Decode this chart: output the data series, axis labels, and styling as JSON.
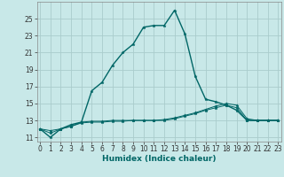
{
  "xlabel": "Humidex (Indice chaleur)",
  "bg_color": "#c8e8e8",
  "grid_color": "#aacccc",
  "line_color": "#006666",
  "x_main": [
    0,
    1,
    2,
    3,
    4,
    5,
    6,
    7,
    8,
    9,
    10,
    11,
    12,
    13,
    14,
    15,
    16,
    17,
    18,
    19,
    20,
    21,
    22,
    23
  ],
  "y_main": [
    12,
    11,
    12,
    12.5,
    12.8,
    16.5,
    17.5,
    19.5,
    21,
    22,
    24,
    24.2,
    24.2,
    26,
    23.2,
    18.2,
    15.5,
    15.2,
    14.8,
    14.2,
    13,
    13,
    13,
    13
  ],
  "x_line1": [
    0,
    1,
    2,
    3,
    4,
    5,
    6,
    7,
    8,
    9,
    10,
    11,
    12,
    13,
    14,
    15,
    16,
    17,
    18,
    19,
    20,
    21,
    22,
    23
  ],
  "y_line1": [
    12,
    11.8,
    12,
    12.3,
    12.8,
    12.9,
    12.9,
    13.0,
    13.0,
    13.0,
    13.0,
    13.0,
    13.0,
    13.2,
    13.5,
    13.8,
    14.2,
    14.5,
    14.8,
    14.5,
    13,
    13,
    13,
    13
  ],
  "x_line2": [
    0,
    1,
    2,
    3,
    4,
    5,
    6,
    7,
    8,
    9,
    10,
    11,
    12,
    13,
    14,
    15,
    16,
    17,
    18,
    19,
    20,
    21,
    22,
    23
  ],
  "y_line2": [
    12,
    11.5,
    12,
    12.3,
    12.7,
    12.8,
    12.8,
    12.9,
    12.9,
    13.0,
    13.0,
    13.0,
    13.1,
    13.3,
    13.6,
    13.9,
    14.3,
    14.7,
    15.0,
    14.8,
    13.2,
    13,
    13,
    13
  ],
  "xlim": [
    -0.3,
    23.3
  ],
  "ylim": [
    10.5,
    27.0
  ],
  "yticks": [
    11,
    13,
    15,
    17,
    19,
    21,
    23,
    25
  ],
  "xticks": [
    0,
    1,
    2,
    3,
    4,
    5,
    6,
    7,
    8,
    9,
    10,
    11,
    12,
    13,
    14,
    15,
    16,
    17,
    18,
    19,
    20,
    21,
    22,
    23
  ],
  "tick_fontsize": 5.5,
  "xlabel_fontsize": 6.5
}
